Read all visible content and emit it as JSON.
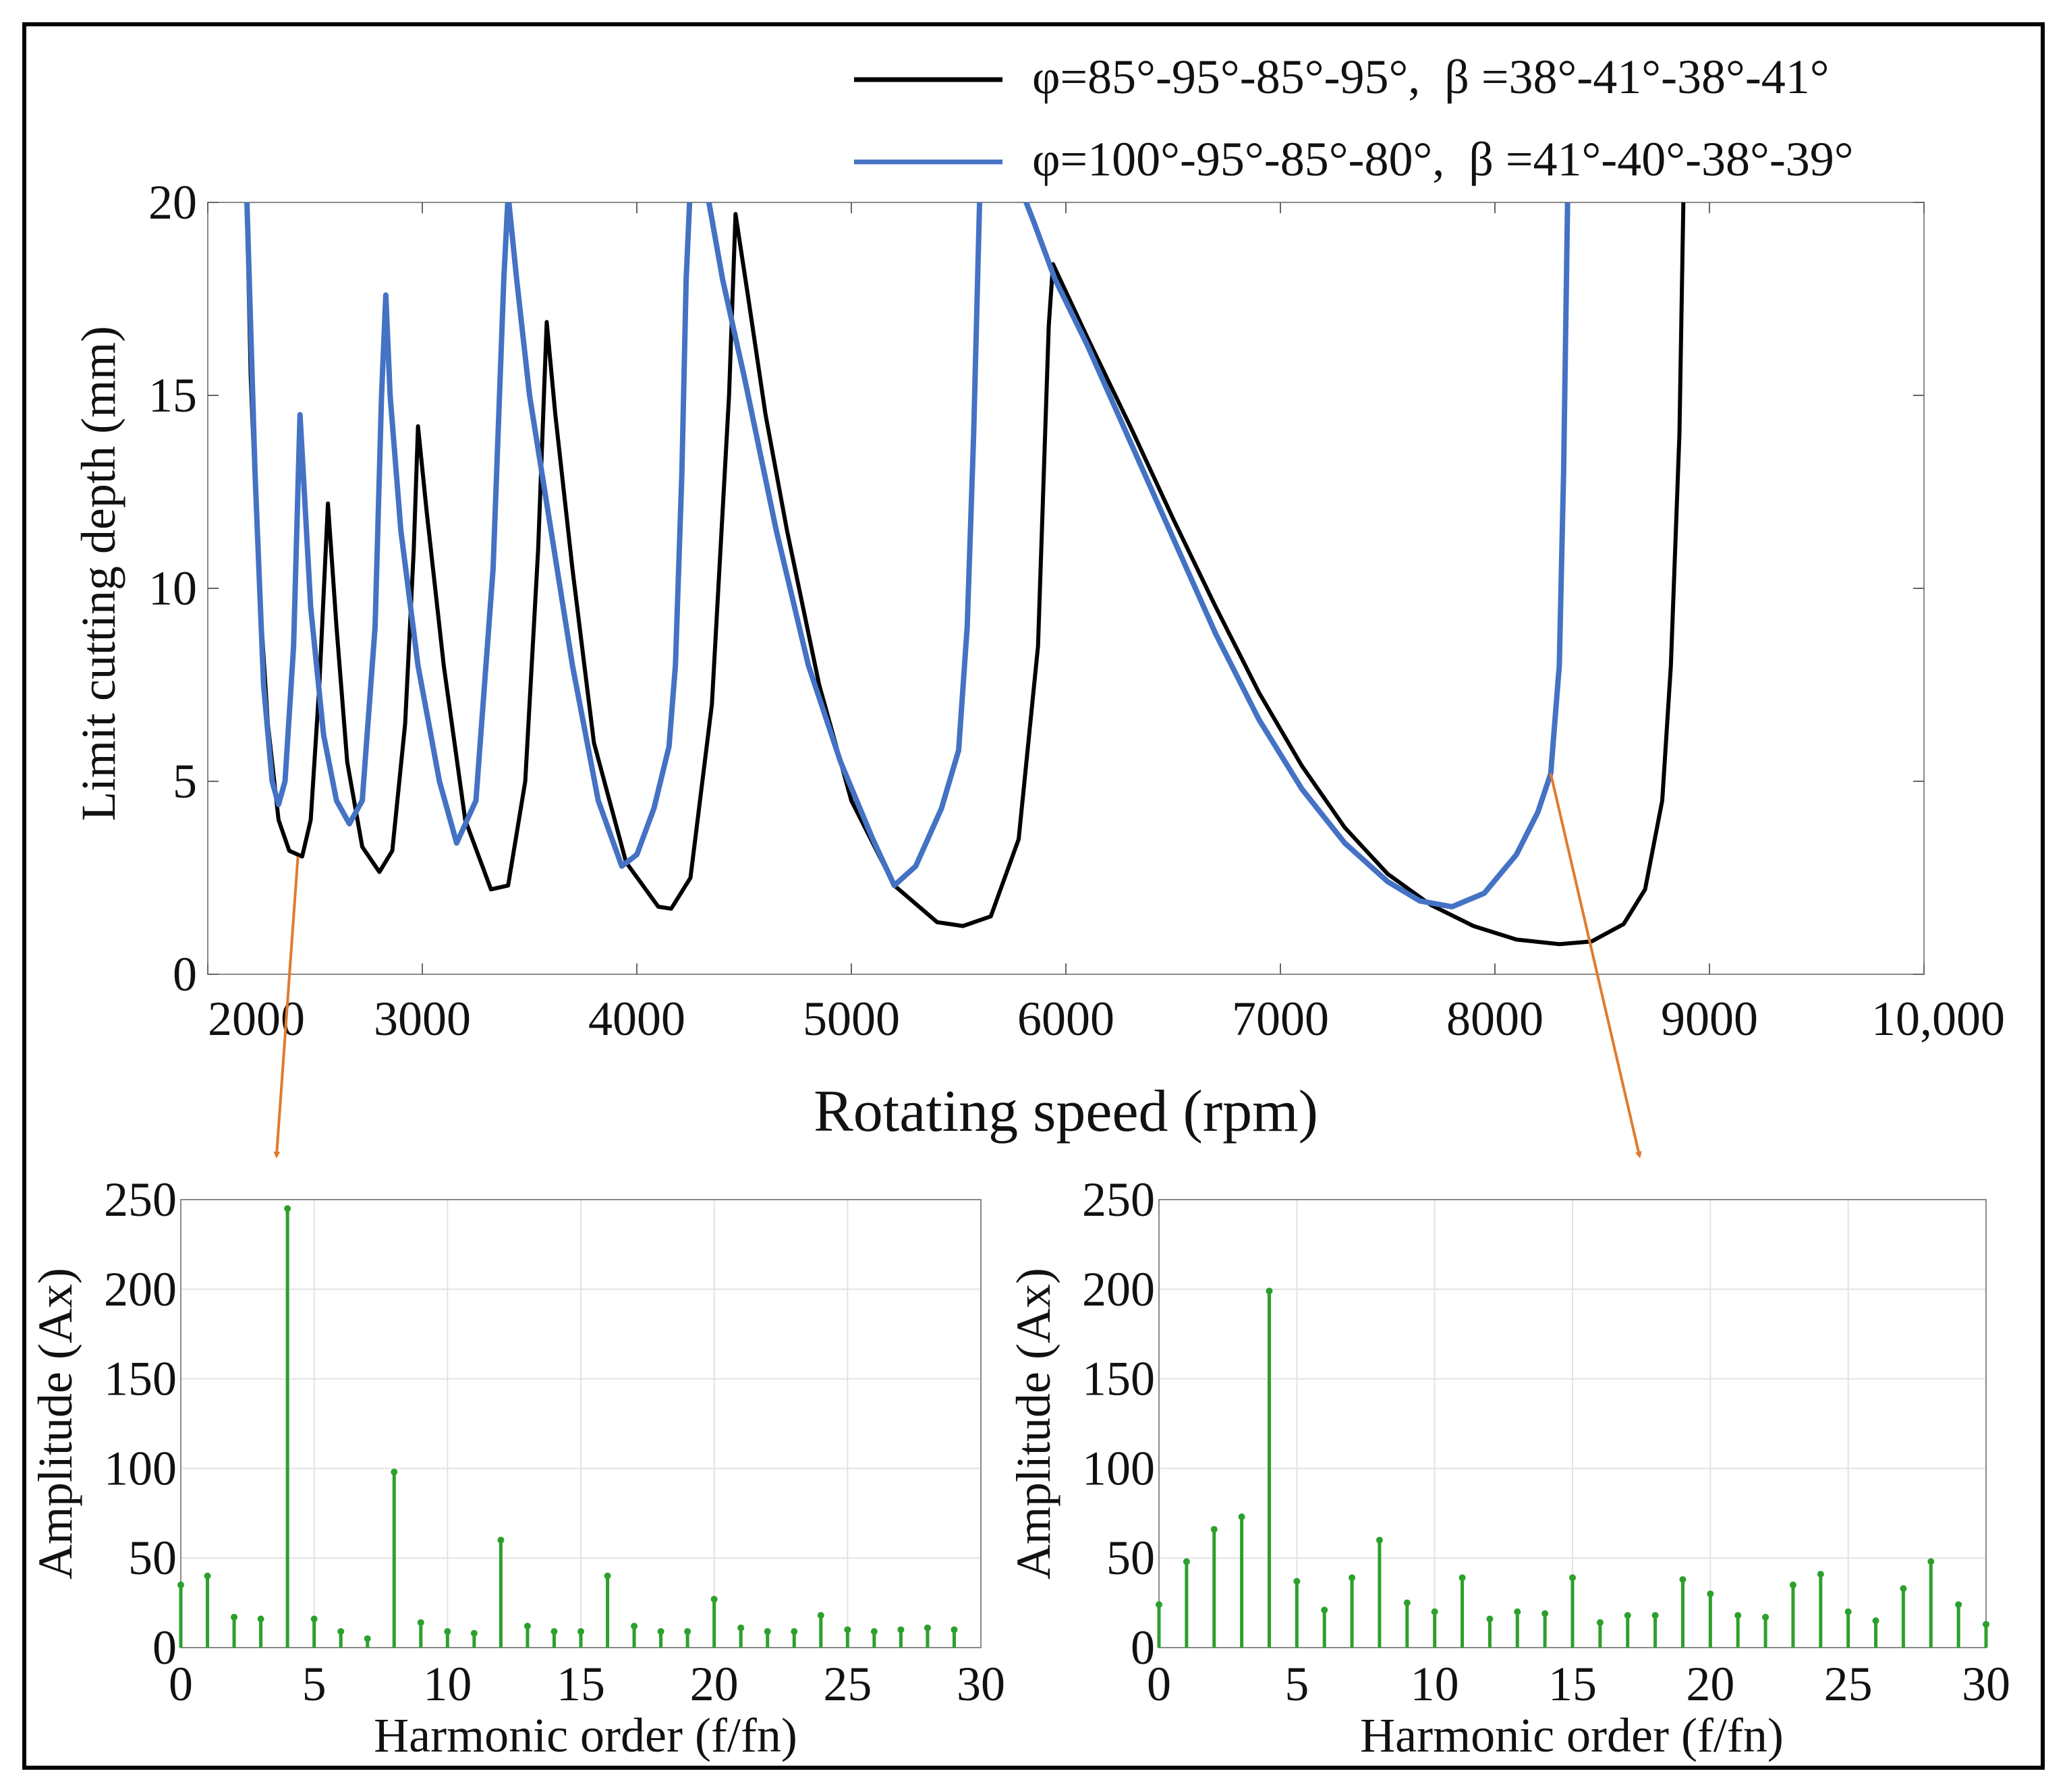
{
  "chart_data": [
    {
      "type": "line",
      "title": "",
      "xlabel": "Rotating speed (rpm)",
      "ylabel": "Limit cutting depth (mm)",
      "xlim": [
        2000,
        10000
      ],
      "ylim": [
        0,
        20
      ],
      "x_ticks": [
        2000,
        3000,
        4000,
        5000,
        6000,
        7000,
        8000,
        9000,
        10000
      ],
      "x_tick_labels": [
        "2000",
        "3000",
        "4000",
        "5000",
        "6000",
        "7000",
        "8000",
        "9000",
        "10,000"
      ],
      "y_ticks": [
        0,
        5,
        10,
        15,
        20
      ],
      "y_tick_labels": [
        "0",
        "5",
        "10",
        "15",
        "20"
      ],
      "legend_position": "top-right, above plot",
      "series": [
        {
          "name": "φ=85°-95°-85°-95°,  β =38°-41°-38°-41°",
          "color": "#000000",
          "points": [
            [
              2180,
              20.5
            ],
            [
              2200,
              15.5
            ],
            [
              2240,
              10
            ],
            [
              2280,
              6.5
            ],
            [
              2330,
              4
            ],
            [
              2380,
              3.2
            ],
            [
              2440,
              3.05
            ],
            [
              2480,
              4
            ],
            [
              2520,
              7.5
            ],
            [
              2560,
              12.2
            ],
            [
              2600,
              9
            ],
            [
              2650,
              5.5
            ],
            [
              2720,
              3.3
            ],
            [
              2800,
              2.65
            ],
            [
              2860,
              3.2
            ],
            [
              2920,
              6.5
            ],
            [
              2960,
              11
            ],
            [
              2980,
              14.2
            ],
            [
              3020,
              12
            ],
            [
              3100,
              8
            ],
            [
              3200,
              4
            ],
            [
              3320,
              2.2
            ],
            [
              3400,
              2.3
            ],
            [
              3480,
              5
            ],
            [
              3540,
              11
            ],
            [
              3580,
              16.9
            ],
            [
              3620,
              14.5
            ],
            [
              3700,
              10.5
            ],
            [
              3800,
              6
            ],
            [
              3950,
              2.9
            ],
            [
              4100,
              1.75
            ],
            [
              4160,
              1.7
            ],
            [
              4250,
              2.5
            ],
            [
              4350,
              7
            ],
            [
              4430,
              15
            ],
            [
              4460,
              19.7
            ],
            [
              4520,
              17.5
            ],
            [
              4600,
              14.5
            ],
            [
              4700,
              11.5
            ],
            [
              4850,
              7.5
            ],
            [
              5000,
              4.5
            ],
            [
              5200,
              2.3
            ],
            [
              5400,
              1.35
            ],
            [
              5520,
              1.25
            ],
            [
              5650,
              1.5
            ],
            [
              5780,
              3.5
            ],
            [
              5870,
              8.5
            ],
            [
              5920,
              16.8
            ],
            [
              5940,
              18.4
            ],
            [
              6100,
              16.5
            ],
            [
              6300,
              14.2
            ],
            [
              6500,
              11.8
            ],
            [
              6700,
              9.5
            ],
            [
              6900,
              7.3
            ],
            [
              7100,
              5.4
            ],
            [
              7300,
              3.8
            ],
            [
              7500,
              2.6
            ],
            [
              7700,
              1.8
            ],
            [
              7900,
              1.25
            ],
            [
              8100,
              0.9
            ],
            [
              8300,
              0.78
            ],
            [
              8450,
              0.85
            ],
            [
              8600,
              1.3
            ],
            [
              8700,
              2.2
            ],
            [
              8780,
              4.5
            ],
            [
              8820,
              8
            ],
            [
              8860,
              14
            ],
            [
              8880,
              20.5
            ]
          ]
        },
        {
          "name": "φ=100°-95°-85°-80°,  β =41°-40°-38°-39°",
          "color": "#4472c4",
          "points": [
            [
              2180,
              20.5
            ],
            [
              2220,
              13
            ],
            [
              2260,
              7.5
            ],
            [
              2300,
              5
            ],
            [
              2330,
              4.4
            ],
            [
              2360,
              5
            ],
            [
              2400,
              8.5
            ],
            [
              2430,
              14.5
            ],
            [
              2450,
              12.5
            ],
            [
              2480,
              9.5
            ],
            [
              2540,
              6.2
            ],
            [
              2600,
              4.5
            ],
            [
              2660,
              3.9
            ],
            [
              2720,
              4.5
            ],
            [
              2780,
              9
            ],
            [
              2810,
              15
            ],
            [
              2830,
              17.6
            ],
            [
              2850,
              15
            ],
            [
              2900,
              11.5
            ],
            [
              2980,
              8
            ],
            [
              3080,
              5
            ],
            [
              3160,
              3.4
            ],
            [
              3250,
              4.5
            ],
            [
              3330,
              10.5
            ],
            [
              3380,
              18
            ],
            [
              3400,
              20.2
            ],
            [
              3440,
              18
            ],
            [
              3500,
              15
            ],
            [
              3600,
              11.5
            ],
            [
              3700,
              8
            ],
            [
              3820,
              4.5
            ],
            [
              3930,
              2.8
            ],
            [
              4000,
              3.1
            ],
            [
              4080,
              4.3
            ],
            [
              4150,
              5.9
            ],
            [
              4180,
              8
            ],
            [
              4210,
              13
            ],
            [
              4230,
              18
            ],
            [
              4250,
              20.5
            ],
            [
              4320,
              20.5
            ],
            [
              4400,
              18
            ],
            [
              4500,
              15.5
            ],
            [
              4650,
              11.5
            ],
            [
              4800,
              8
            ],
            [
              4950,
              5.5
            ],
            [
              5100,
              3.5
            ],
            [
              5200,
              2.3
            ],
            [
              5300,
              2.8
            ],
            [
              5420,
              4.3
            ],
            [
              5500,
              5.8
            ],
            [
              5540,
              9
            ],
            [
              5570,
              14
            ],
            [
              5600,
              20.5
            ],
            [
              5780,
              20.5
            ],
            [
              5850,
              19.5
            ],
            [
              5950,
              18
            ],
            [
              6100,
              16.3
            ],
            [
              6300,
              13.8
            ],
            [
              6500,
              11.3
            ],
            [
              6700,
              8.8
            ],
            [
              6900,
              6.6
            ],
            [
              7100,
              4.8
            ],
            [
              7300,
              3.4
            ],
            [
              7500,
              2.4
            ],
            [
              7650,
              1.9
            ],
            [
              7800,
              1.75
            ],
            [
              7950,
              2.1
            ],
            [
              8100,
              3.1
            ],
            [
              8200,
              4.2
            ],
            [
              8260,
              5.2
            ],
            [
              8300,
              8
            ],
            [
              8320,
              13
            ],
            [
              8340,
              20.5
            ]
          ]
        }
      ],
      "annotations": [
        {
          "type": "arrow",
          "from_data": [
            2420,
            3.05
          ],
          "to": "bottom-left spectrum",
          "color": "#e07b2e"
        },
        {
          "type": "arrow",
          "from_data": [
            8260,
            5.2
          ],
          "to": "bottom-right spectrum",
          "color": "#e07b2e"
        }
      ]
    },
    {
      "type": "bar",
      "subtype": "stem",
      "title": "",
      "xlabel": "Harmonic order (f/fn)",
      "ylabel": "Amplitude (Ax)",
      "xlim": [
        0,
        30
      ],
      "ylim": [
        0,
        250
      ],
      "x_ticks": [
        0,
        5,
        10,
        15,
        20,
        25,
        30
      ],
      "x_tick_labels": [
        "0",
        "5",
        "10",
        "15",
        "20",
        "25",
        "30"
      ],
      "y_ticks": [
        0,
        50,
        100,
        150,
        200,
        250
      ],
      "y_tick_labels": [
        "0",
        "50",
        "100",
        "150",
        "200",
        "250"
      ],
      "grid": true,
      "color": "#2ca02c",
      "x": [
        0,
        1,
        2,
        3,
        4,
        5,
        6,
        7,
        8,
        9,
        10,
        11,
        12,
        13,
        14,
        15,
        16,
        17,
        18,
        19,
        20,
        21,
        22,
        23,
        24,
        25,
        26,
        27,
        28,
        29
      ],
      "values": [
        35,
        40,
        17,
        16,
        245,
        16,
        9,
        5,
        98,
        14,
        9,
        8,
        60,
        12,
        9,
        9,
        40,
        12,
        9,
        9,
        27,
        11,
        9,
        9,
        18,
        10,
        9,
        10,
        11,
        10
      ]
    },
    {
      "type": "bar",
      "subtype": "stem",
      "title": "",
      "xlabel": "Harmonic order (f/fn)",
      "ylabel": "Amplitude (Ax)",
      "xlim": [
        0,
        30
      ],
      "ylim": [
        0,
        250
      ],
      "x_ticks": [
        0,
        5,
        10,
        15,
        20,
        25,
        30
      ],
      "x_tick_labels": [
        "0",
        "5",
        "10",
        "15",
        "20",
        "25",
        "30"
      ],
      "y_ticks": [
        0,
        50,
        100,
        150,
        200,
        250
      ],
      "y_tick_labels": [
        "0",
        "50",
        "100",
        "150",
        "200",
        "250"
      ],
      "grid": true,
      "color": "#2ca02c",
      "x": [
        0,
        1,
        2,
        3,
        4,
        5,
        6,
        7,
        8,
        9,
        10,
        11,
        12,
        13,
        14,
        15,
        16,
        17,
        18,
        19,
        20,
        21,
        22,
        23,
        24,
        25,
        26,
        27,
        28,
        29,
        30
      ],
      "values": [
        24,
        48,
        66,
        73,
        199,
        37,
        21,
        39,
        60,
        25,
        20,
        39,
        16,
        20,
        19,
        39,
        14,
        18,
        18,
        38,
        30,
        18,
        17,
        35,
        41,
        20,
        15,
        33,
        48,
        24,
        13
      ]
    }
  ]
}
